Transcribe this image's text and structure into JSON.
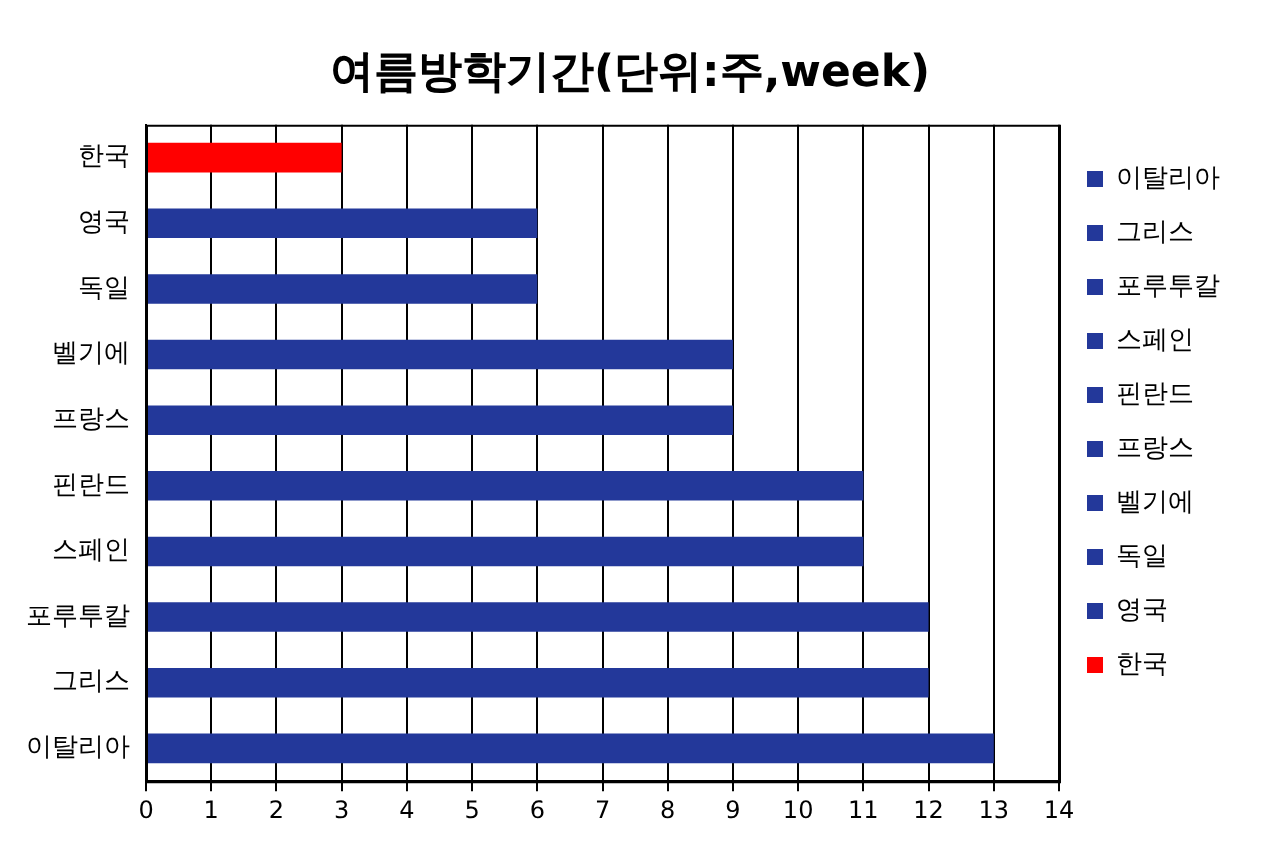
{
  "chart_data": {
    "type": "bar",
    "orientation": "horizontal",
    "stacked": true,
    "title": "여름방학기간(단위:주,week)",
    "categories": [
      "한국",
      "영국",
      "독일",
      "벨기에",
      "프랑스",
      "핀란드",
      "스페인",
      "포루투칼",
      "그리스",
      "이탈리아"
    ],
    "series": [
      {
        "name": "이탈리아",
        "color": "#23389a",
        "values": [
          null,
          null,
          null,
          null,
          null,
          null,
          null,
          null,
          null,
          13
        ]
      },
      {
        "name": "그리스",
        "color": "#23389a",
        "values": [
          null,
          null,
          null,
          null,
          null,
          null,
          null,
          null,
          12,
          null
        ]
      },
      {
        "name": "포루투칼",
        "color": "#23389a",
        "values": [
          null,
          null,
          null,
          null,
          null,
          null,
          null,
          12,
          null,
          null
        ]
      },
      {
        "name": "스페인",
        "color": "#23389a",
        "values": [
          null,
          null,
          null,
          null,
          null,
          null,
          11,
          null,
          null,
          null
        ]
      },
      {
        "name": "핀란드",
        "color": "#23389a",
        "values": [
          null,
          null,
          null,
          null,
          null,
          11,
          null,
          null,
          null,
          null
        ]
      },
      {
        "name": "프랑스",
        "color": "#23389a",
        "values": [
          null,
          null,
          null,
          null,
          9,
          null,
          null,
          null,
          null,
          null
        ]
      },
      {
        "name": "벨기에",
        "color": "#23389a",
        "values": [
          null,
          null,
          null,
          9,
          null,
          null,
          null,
          null,
          null,
          null
        ]
      },
      {
        "name": "독일",
        "color": "#23389a",
        "values": [
          null,
          null,
          6,
          null,
          null,
          null,
          null,
          null,
          null,
          null
        ]
      },
      {
        "name": "영국",
        "color": "#23389a",
        "values": [
          null,
          6,
          null,
          null,
          null,
          null,
          null,
          null,
          null,
          null
        ]
      },
      {
        "name": "한국",
        "color": "#ff0000",
        "values": [
          3,
          null,
          null,
          null,
          null,
          null,
          null,
          null,
          null,
          null
        ]
      }
    ],
    "xlim": [
      0,
      14
    ],
    "xticks": [
      0,
      1,
      2,
      3,
      4,
      5,
      6,
      7,
      8,
      9,
      10,
      11,
      12,
      13,
      14
    ],
    "grid": "x",
    "legend": "right"
  }
}
